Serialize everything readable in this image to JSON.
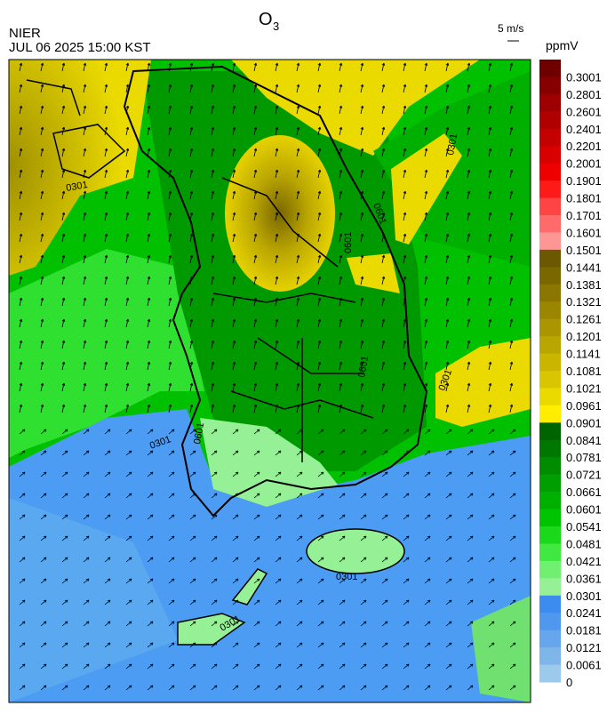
{
  "header": {
    "title": "O",
    "title_sub": "3",
    "agency": "NIER",
    "datetime": "JUL 06 2025 15:00 KST",
    "vector_scale": "5 m/s"
  },
  "colorbar": {
    "unit": "ppmV",
    "labels": [
      "0.3001",
      "0.2801",
      "0.2601",
      "0.2401",
      "0.2201",
      "0.2001",
      "0.1901",
      "0.1801",
      "0.1701",
      "0.1601",
      "0.1501",
      "0.1441",
      "0.1381",
      "0.1321",
      "0.1261",
      "0.1201",
      "0.1141",
      "0.1081",
      "0.1021",
      "0.0961",
      "0.0901",
      "0.0841",
      "0.0781",
      "0.0721",
      "0.0661",
      "0.0601",
      "0.0541",
      "0.0481",
      "0.0421",
      "0.0361",
      "0.0301",
      "0.0241",
      "0.0181",
      "0.0121",
      "0.0061",
      "0"
    ],
    "colors": [
      "#6e0000",
      "#860000",
      "#9c0000",
      "#b00000",
      "#c40000",
      "#d80000",
      "#ee0000",
      "#ff1a1a",
      "#ff4444",
      "#ff6b6b",
      "#ff9696",
      "#6b5800",
      "#7a6700",
      "#8a7600",
      "#9a8600",
      "#aa9600",
      "#baa600",
      "#cab600",
      "#dac600",
      "#eada00",
      "#ffee00",
      "#006400",
      "#007800",
      "#008c00",
      "#009e00",
      "#00b000",
      "#00c400",
      "#1ad81a",
      "#40e840",
      "#70f070",
      "#96f096",
      "#3c8cf0",
      "#5098ee",
      "#66a6ec",
      "#7eb6ea",
      "#9ccaec"
    ]
  },
  "contour_labels": [
    "0301",
    "0601",
    "0601",
    "0601",
    "0301",
    "0301",
    "0301",
    "0301",
    "0601",
    "0301"
  ]
}
